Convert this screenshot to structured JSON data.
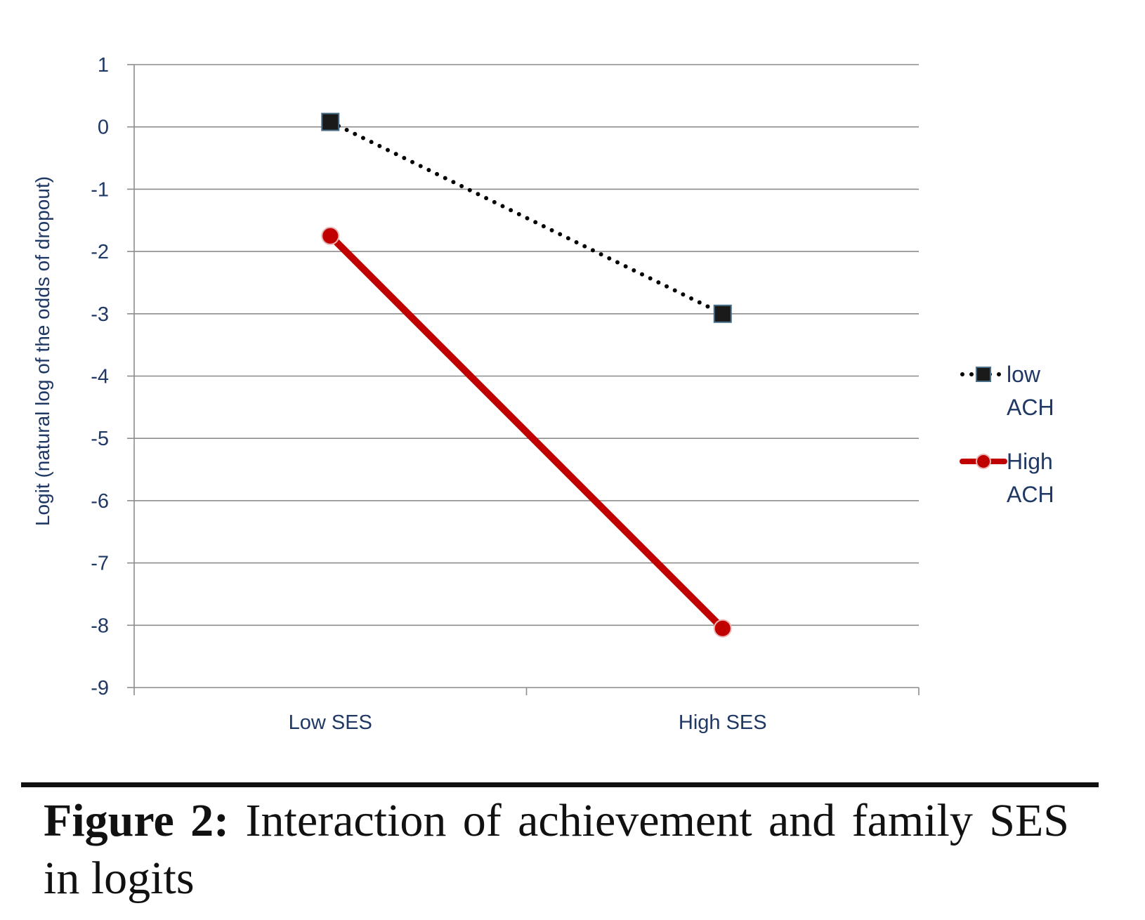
{
  "chart_data": {
    "type": "line",
    "categories": [
      "Low SES",
      "High SES"
    ],
    "ylabel": "Logit (natural log of the odds of dropout)",
    "ylim": [
      -9,
      1
    ],
    "yticks": [
      1,
      0,
      -1,
      -2,
      -3,
      -4,
      -5,
      -6,
      -7,
      -8,
      -9
    ],
    "grid": true,
    "legend_position": "right",
    "series": [
      {
        "name_lines": [
          "low",
          "ACH"
        ],
        "values": [
          0.08,
          -3.0
        ],
        "color": "#000000",
        "style": "dotted",
        "marker": "square"
      },
      {
        "name_lines": [
          "High",
          "ACH"
        ],
        "values": [
          -1.75,
          -8.05
        ],
        "color": "#c00000",
        "style": "solid",
        "marker": "circle"
      }
    ]
  },
  "caption": {
    "label": "Figure 2:",
    "text": " Interaction of achievement and family SES in logits"
  }
}
